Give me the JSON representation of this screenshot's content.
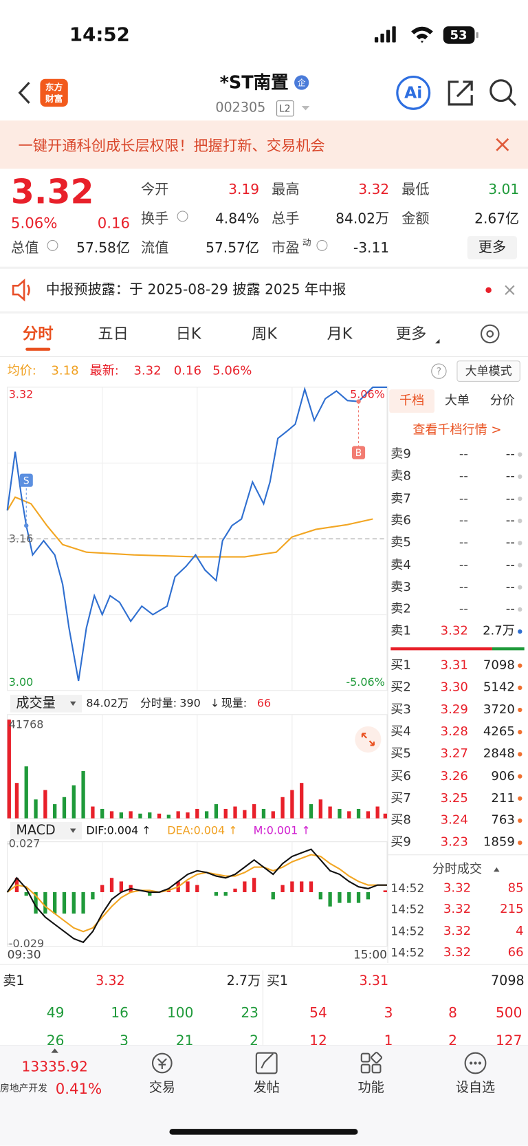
{
  "status": {
    "time": "14:52",
    "battery": "53"
  },
  "header": {
    "logo_top": "东方",
    "logo_bottom": "财富",
    "title": "*ST南置",
    "badge": "企",
    "code": "002305",
    "level": "L2",
    "ai": "Ai"
  },
  "banner": {
    "text": "一键开通科创成长层权限！把握打新、交易机会"
  },
  "quote": {
    "price": "3.32",
    "pct": "5.06%",
    "change": "0.16",
    "more": "更多",
    "fields": [
      {
        "label": "今开",
        "value": "3.19",
        "color": "#e8202a"
      },
      {
        "label": "最高",
        "value": "3.32",
        "color": "#e8202a"
      },
      {
        "label": "最低",
        "value": "3.01",
        "color": "#1f9a3a"
      },
      {
        "label": "换手",
        "value": "4.84%"
      },
      {
        "label": "总手",
        "value": "84.02万"
      },
      {
        "label": "金额",
        "value": "2.67亿"
      },
      {
        "label": "总值",
        "value": "57.58亿"
      },
      {
        "label": "流值",
        "value": "57.57亿"
      },
      {
        "label": "市盈",
        "sup": "动",
        "value": "-3.11"
      }
    ]
  },
  "notice": {
    "text": "中报预披露：于 2025-08-29 披露 2025 年中报"
  },
  "tabs": {
    "items": [
      "分时",
      "五日",
      "日K",
      "周K",
      "月K",
      "更多"
    ],
    "active": 0
  },
  "chart_header": {
    "avg_label": "均价:",
    "avg": "3.18",
    "last_label": "最新:",
    "last": "3.32",
    "change": "0.16",
    "pct": "5.06%",
    "mode": "大单模式"
  },
  "intraday": {
    "xlim": [
      0,
      240
    ],
    "ylim": [
      3.0,
      3.32
    ],
    "yticks": [
      3.32,
      3.16,
      {
        "value": 3,
        "label": "3.00"
      }
    ],
    "pct_ticks": [
      {
        "value": 3.32,
        "label": "5.06%"
      },
      {
        "value": 3,
        "label": "-5.06%"
      }
    ],
    "x": [
      0,
      5,
      9,
      12,
      16,
      23,
      30,
      35,
      39,
      45,
      50,
      55,
      60,
      65,
      71,
      78,
      85,
      92,
      101,
      106,
      113,
      119,
      125,
      132,
      136,
      142,
      148,
      155,
      162,
      166,
      171,
      177,
      182,
      188,
      194,
      201,
      208,
      215,
      222,
      231,
      240
    ],
    "price": [
      3.19,
      3.252,
      3.204,
      3.174,
      3.143,
      3.158,
      3.143,
      3.112,
      3.066,
      3.01,
      3.066,
      3.1,
      3.08,
      3.1,
      3.093,
      3.073,
      3.089,
      3.08,
      3.089,
      3.12,
      3.131,
      3.143,
      3.127,
      3.116,
      3.158,
      3.174,
      3.181,
      3.22,
      3.197,
      3.22,
      3.266,
      3.274,
      3.281,
      3.318,
      3.285,
      3.308,
      3.316,
      3.306,
      3.305,
      3.32,
      3.32
    ],
    "avg_x": [
      0,
      5,
      15,
      25,
      35,
      50,
      80,
      120,
      150,
      170,
      180,
      195,
      215,
      231
    ],
    "avg": [
      3.19,
      3.204,
      3.197,
      3.174,
      3.154,
      3.146,
      3.143,
      3.141,
      3.141,
      3.146,
      3.162,
      3.17,
      3.175,
      3.181
    ],
    "price_color": "#2f6fd0",
    "avg_color": "#f2a623",
    "markers": [
      {
        "label": "S",
        "x": 12,
        "value": 3.174,
        "color": "#5b8fe0"
      },
      {
        "label": "B",
        "x": 222,
        "value": 3.305,
        "color": "#f27c72"
      }
    ],
    "time_axis": [
      "09:30",
      "15:00"
    ]
  },
  "volume_header": {
    "label": "成交量",
    "total": "84.02万",
    "seg_label": "分时量:",
    "seg": "390",
    "arrow": "↓",
    "now_label": "现量:",
    "now": "66"
  },
  "volume": {
    "ylim": [
      0,
      41768
    ],
    "yticks": [
      41768
    ],
    "x": [
      0,
      6,
      12,
      18,
      24,
      30,
      36,
      42,
      48,
      54,
      60,
      66,
      72,
      78,
      84,
      90,
      96,
      102,
      108,
      114,
      120,
      126,
      132,
      138,
      144,
      150,
      156,
      162,
      168,
      174,
      180,
      186,
      192,
      198,
      204,
      210,
      216,
      222,
      228,
      234,
      240
    ],
    "values": [
      41768,
      15000,
      22000,
      8000,
      12000,
      6000,
      9000,
      14000,
      20000,
      5000,
      4000,
      3000,
      2500,
      3000,
      2000,
      2500,
      2000,
      1500,
      3000,
      2500,
      4000,
      3000,
      6000,
      4000,
      5000,
      3500,
      6000,
      4000,
      3000,
      9000,
      12000,
      15000,
      6000,
      8000,
      5000,
      4000,
      3000,
      4000,
      3000,
      5000,
      2000
    ],
    "colors": [
      "#e8202a",
      "#e8202a",
      "#1f9a3a",
      "#1f9a3a",
      "#e8202a",
      "#1f9a3a",
      "#1f9a3a",
      "#1f9a3a",
      "#1f9a3a",
      "#e8202a",
      "#1f9a3a",
      "#e8202a",
      "#1f9a3a",
      "#e8202a",
      "#1f9a3a",
      "#1f9a3a",
      "#e8202a",
      "#1f9a3a",
      "#e8202a",
      "#e8202a",
      "#e8202a",
      "#1f9a3a",
      "#1f9a3a",
      "#e8202a",
      "#e8202a",
      "#e8202a",
      "#e8202a",
      "#1f9a3a",
      "#e8202a",
      "#e8202a",
      "#e8202a",
      "#e8202a",
      "#1f9a3a",
      "#e8202a",
      "#e8202a",
      "#1f9a3a",
      "#e8202a",
      "#1f9a3a",
      "#e8202a",
      "#e8202a",
      "#e8202a"
    ]
  },
  "macd_header": {
    "label": "MACD",
    "dif": "DIF:0.004 ↑",
    "dea": "DEA:0.004 ↑",
    "m": "M:0.001 ↑"
  },
  "macd": {
    "ylim": [
      -0.029,
      0.027
    ],
    "yticks": [
      0.027,
      -0.029
    ],
    "x": [
      0,
      6,
      12,
      18,
      24,
      30,
      36,
      42,
      48,
      54,
      60,
      66,
      72,
      78,
      84,
      90,
      96,
      102,
      108,
      114,
      120,
      126,
      132,
      138,
      144,
      150,
      156,
      162,
      168,
      174,
      180,
      186,
      192,
      198,
      204,
      210,
      216,
      222,
      228,
      234,
      240
    ],
    "dif": [
      0,
      0.008,
      0.002,
      -0.008,
      -0.014,
      -0.018,
      -0.022,
      -0.026,
      -0.028,
      -0.022,
      -0.012,
      -0.004,
      0,
      0.002,
      0.001,
      0,
      0,
      0.002,
      0.006,
      0.01,
      0.012,
      0.011,
      0.009,
      0.008,
      0.01,
      0.014,
      0.018,
      0.014,
      0.01,
      0.016,
      0.02,
      0.022,
      0.024,
      0.018,
      0.012,
      0.01,
      0.006,
      0.003,
      0.002,
      0.004,
      0.004
    ],
    "dea": [
      0,
      0.004,
      0.003,
      -0.002,
      -0.008,
      -0.012,
      -0.016,
      -0.02,
      -0.022,
      -0.02,
      -0.014,
      -0.008,
      -0.003,
      0,
      0.001,
      0.001,
      0,
      0.001,
      0.003,
      0.007,
      0.01,
      0.011,
      0.01,
      0.009,
      0.009,
      0.011,
      0.014,
      0.014,
      0.012,
      0.014,
      0.017,
      0.019,
      0.021,
      0.02,
      0.016,
      0.013,
      0.009,
      0.006,
      0.004,
      0.004,
      0.004
    ],
    "m": [
      0,
      0.008,
      -0.002,
      -0.012,
      -0.012,
      -0.012,
      -0.012,
      -0.012,
      -0.012,
      -0.004,
      0.004,
      0.008,
      0.006,
      0.004,
      0,
      -0.002,
      0,
      0.002,
      0.006,
      0.006,
      0.004,
      0,
      -0.002,
      -0.002,
      0.002,
      0.006,
      0.008,
      0,
      -0.004,
      0.004,
      0.006,
      0.006,
      0.006,
      -0.004,
      -0.008,
      -0.006,
      -0.006,
      -0.006,
      -0.004,
      0,
      0.001
    ],
    "dif_color": "#111111",
    "dea_color": "#f2a623"
  },
  "panel": {
    "tabs": [
      "千档",
      "大单",
      "分价"
    ],
    "link": "查看千档行情 >",
    "sells": [
      {
        "label": "卖9",
        "price": "--",
        "volume": "--"
      },
      {
        "label": "卖8",
        "price": "--",
        "volume": "--"
      },
      {
        "label": "卖7",
        "price": "--",
        "volume": "--"
      },
      {
        "label": "卖6",
        "price": "--",
        "volume": "--"
      },
      {
        "label": "卖5",
        "price": "--",
        "volume": "--"
      },
      {
        "label": "卖4",
        "price": "--",
        "volume": "--"
      },
      {
        "label": "卖3",
        "price": "--",
        "volume": "--"
      },
      {
        "label": "卖2",
        "price": "--",
        "volume": "--"
      },
      {
        "label": "卖1",
        "price": "3.32",
        "volume": "2.7万"
      }
    ],
    "buys": [
      {
        "label": "买1",
        "price": "3.31",
        "volume": "7098"
      },
      {
        "label": "买2",
        "price": "3.30",
        "volume": "5142"
      },
      {
        "label": "买3",
        "price": "3.29",
        "volume": "3720"
      },
      {
        "label": "买4",
        "price": "3.28",
        "volume": "4265"
      },
      {
        "label": "买5",
        "price": "3.27",
        "volume": "2848"
      },
      {
        "label": "买6",
        "price": "3.26",
        "volume": "906"
      },
      {
        "label": "买7",
        "price": "3.25",
        "volume": "211"
      },
      {
        "label": "买8",
        "price": "3.24",
        "volume": "763"
      },
      {
        "label": "买9",
        "price": "3.23",
        "volume": "1859"
      }
    ],
    "trades_title": "分时成交",
    "trades": [
      {
        "time": "14:52",
        "price": "3.32",
        "volume": "85"
      },
      {
        "time": "14:52",
        "price": "3.32",
        "volume": "215"
      },
      {
        "time": "14:52",
        "price": "3.32",
        "volume": "4"
      },
      {
        "time": "14:52",
        "price": "3.32",
        "volume": "66"
      }
    ]
  },
  "book": {
    "sell": {
      "label": "卖1",
      "price": "3.32",
      "volume": "2.7万",
      "rows": [
        [
          "49",
          "16",
          "100",
          "23"
        ],
        [
          "26",
          "3",
          "21",
          "2"
        ]
      ]
    },
    "buy": {
      "label": "买1",
      "price": "3.31",
      "volume": "7098",
      "rows": [
        [
          "54",
          "3",
          "8",
          "500"
        ],
        [
          "12",
          "1",
          "2",
          "127"
        ]
      ]
    }
  },
  "nav": {
    "index_value": "13335.92",
    "sector": "房地产开发",
    "sector_pct": "0.41%",
    "items": [
      "交易",
      "发帖",
      "功能",
      "设自选"
    ]
  }
}
